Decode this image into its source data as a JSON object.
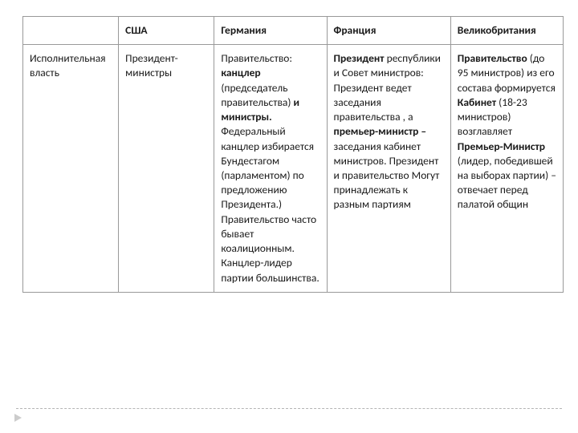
{
  "columns": [
    "США",
    "Германия",
    "Франция",
    "Великобритания"
  ],
  "row_label": "Исполнительная власть",
  "cells": {
    "usa": "Президент- министры",
    "germany_html": "Правительство: <b>канцлер</b> (председатель правительства) <b>и министры.</b> Федеральный канцлер избирается Бундестагом (парламентом) по предложению Президента.) Правительство часто бывает коалиционным. Канцлер-лидер партии большинства.",
    "france_html": "<b>Президент</b> республики и Совет министров: Президент ведет заседания правительства , а <b>премьер-министр –</b> заседания кабинет министров. Президент и правительство Могут принадлежать к разным партиям",
    "uk_html": "<b>Правительство</b> (до 95 министров) из его состава формируется <b>Кабинет</b> (18-23 министров) возглавляет <b>Премьер-Министр</b> (лидер, победившей на выборах партии) – отвечает перед палатой общин"
  },
  "style": {
    "text_color": "#1a1a1a",
    "border_color": "#999999",
    "font_size": 13.5,
    "line_height": 1.35,
    "divider_color": "#b5b5b5",
    "arrow_color": "#cccccc"
  }
}
